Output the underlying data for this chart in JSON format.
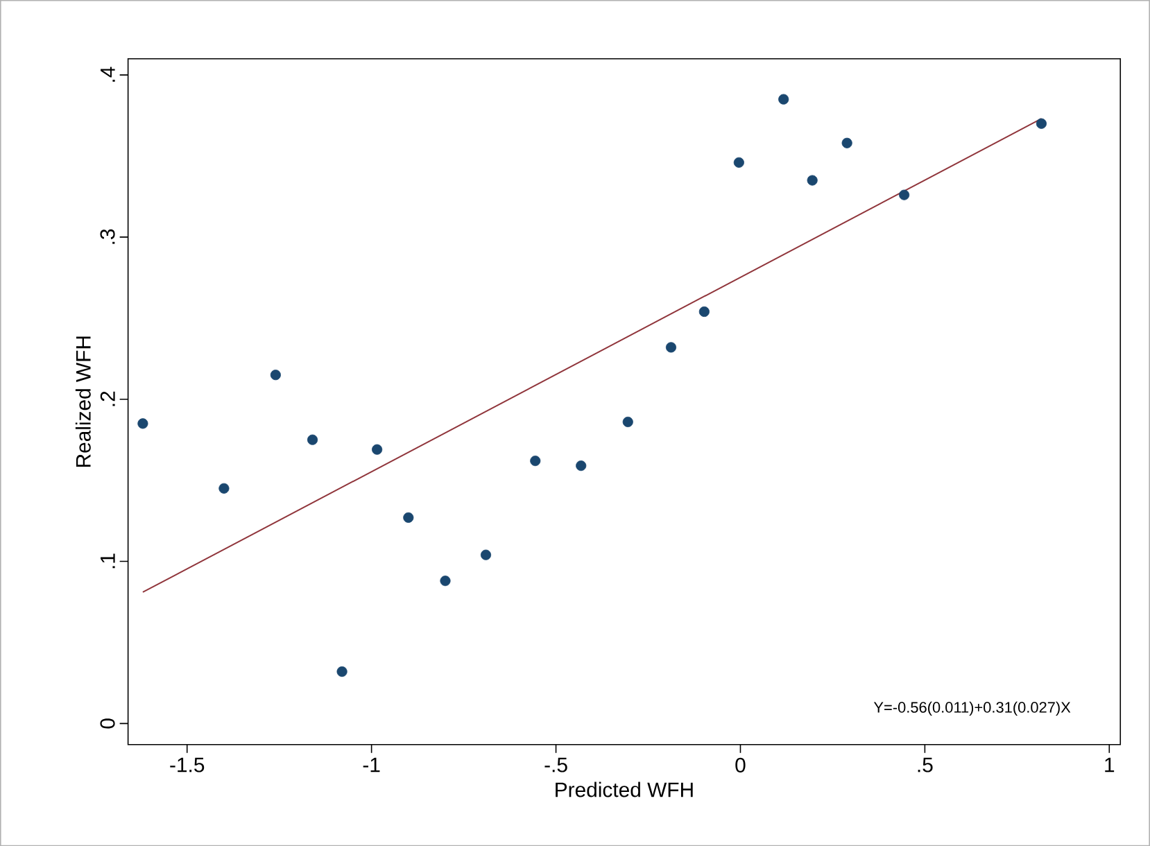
{
  "chart_data": {
    "type": "scatter",
    "xlabel": "Predicted WFH",
    "ylabel": "Realized WFH",
    "xlim": [
      -1.66,
      1.03
    ],
    "ylim": [
      -0.013,
      0.41
    ],
    "xticks": [
      {
        "value": -1.5,
        "label": "-1.5"
      },
      -1,
      {
        "value": -0.5,
        "label": "-.5"
      },
      0,
      {
        "value": 0.5,
        "label": ".5"
      },
      1
    ],
    "yticks": [
      0,
      {
        "value": 0.1,
        "label": ".1"
      },
      {
        "value": 0.2,
        "label": ".2"
      },
      {
        "value": 0.3,
        "label": ".3"
      },
      {
        "value": 0.4,
        "label": ".4"
      }
    ],
    "annotations": [
      "Y=-0.56(0.011)+0.31(0.027)X"
    ],
    "series": [
      {
        "marker": "circle",
        "color": "#1a476f",
        "x": [
          -1.62,
          -1.4,
          -1.26,
          -1.16,
          -0.985,
          -1.08,
          -0.9,
          -0.8,
          -0.69,
          -0.556,
          -0.432,
          -0.305,
          -0.188,
          -0.098,
          -0.004,
          0.117,
          0.195,
          0.289,
          0.444,
          0.816
        ],
        "values": [
          0.185,
          0.145,
          0.215,
          0.175,
          0.169,
          0.032,
          0.127,
          0.088,
          0.104,
          0.162,
          0.159,
          0.186,
          0.232,
          0.254,
          0.346,
          0.385,
          0.335,
          0.358,
          0.326,
          0.37
        ]
      },
      {
        "type": "line",
        "color": "#90353b",
        "x": [
          -1.62,
          0.816
        ],
        "values": [
          0.081,
          0.373
        ]
      }
    ]
  }
}
